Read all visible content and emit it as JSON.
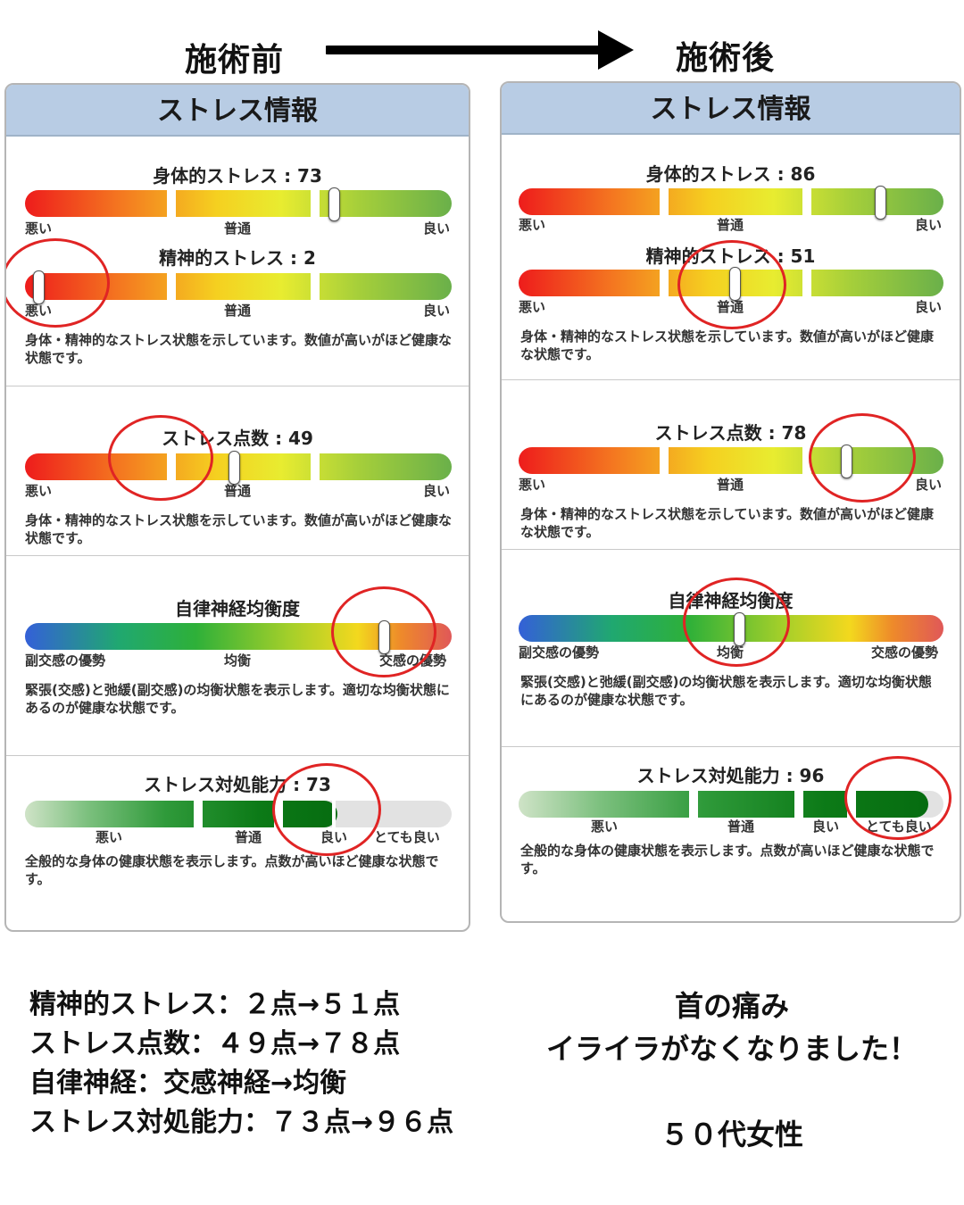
{
  "header": {
    "before": "施術前",
    "after": "施術後"
  },
  "panel_title": "ストレス情報",
  "scale_labels": {
    "bad": "悪い",
    "normal": "普通",
    "good": "良い",
    "parasym": "副交感の優勢",
    "balance": "均衡",
    "sym": "交感の優勢",
    "very_good": "とても良い"
  },
  "desc": {
    "stress": "身体・精神的なストレス状態を示しています。数値が高いがほど健康な状態です。",
    "autonomic": "緊張(交感)と弛緩(副交感)の均衡状態を表示します。適切な均衡状態にあるのが健康な状態です。",
    "coping": "全般的な身体の健康状態を表示します。点数が高いほど健康な状態です。"
  },
  "before": {
    "physical": {
      "title": "身体的ストレス : 73",
      "value": 73
    },
    "mental": {
      "title": "精神的ストレス : 2",
      "value": 2
    },
    "score": {
      "title": "ストレス点数 : 49",
      "value": 49
    },
    "autonomic": {
      "title": "自律神経均衡度",
      "value": 85
    },
    "coping": {
      "title": "ストレス対処能力 : 73",
      "value": 73
    }
  },
  "after": {
    "physical": {
      "title": "身体的ストレス : 86",
      "value": 86
    },
    "mental": {
      "title": "精神的ストレス : 51",
      "value": 51
    },
    "score": {
      "title": "ストレス点数 : 78",
      "value": 78
    },
    "autonomic": {
      "title": "自律神経均衡度",
      "value": 52
    },
    "coping": {
      "title": "ストレス対処能力 : 96",
      "value": 96
    }
  },
  "summary": [
    "精神的ストレス：２点→５１点",
    "ストレス点数：４９点→７８点",
    "自律神経：交感神経→均衡",
    "ストレス対処能力：７３点→９６点"
  ],
  "testimonial": {
    "line1": "首の痛み",
    "line2": "イライラがなくなりました！",
    "person": "５０代女性"
  },
  "colors": {
    "header_bg": "#b8cce4",
    "highlight_circle": "#e02424"
  }
}
